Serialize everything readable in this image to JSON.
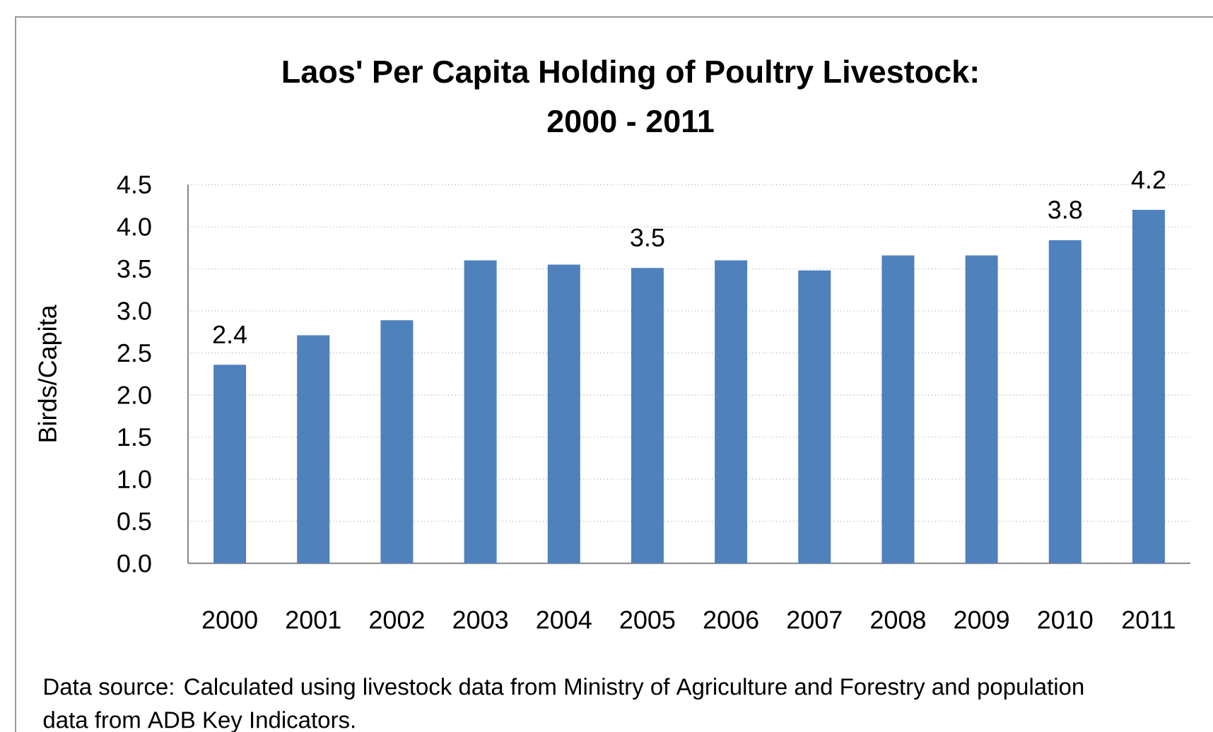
{
  "chart_data": {
    "type": "bar",
    "title": "Laos' Per Capita Holding of Poultry Livestock: 2000 - 2011",
    "ylabel": "Birds/Capita",
    "categories": [
      "2000",
      "2001",
      "2002",
      "2003",
      "2004",
      "2005",
      "2006",
      "2007",
      "2008",
      "2009",
      "2010",
      "2011"
    ],
    "values": [
      2.36,
      2.71,
      2.89,
      3.6,
      3.55,
      3.51,
      3.6,
      3.48,
      3.66,
      3.66,
      3.84,
      4.2
    ],
    "value_labels": [
      "2.4",
      null,
      null,
      null,
      null,
      "3.5",
      null,
      null,
      null,
      null,
      "3.8",
      "4.2"
    ],
    "color": "#4f81bd",
    "ylim": [
      0,
      4.5
    ],
    "yticks": [
      {
        "value": 0,
        "label": "0.0"
      },
      0.5,
      {
        "value": 1,
        "label": "1.0"
      },
      1.5,
      {
        "value": 2,
        "label": "2.0"
      },
      2.5,
      {
        "value": 3,
        "label": "3.0"
      },
      3.5,
      {
        "value": 4,
        "label": "4.0"
      },
      4.5
    ],
    "grid": "y",
    "annotations": [
      "Data source: Calculated using livestock data from Ministry of Agriculture and Forestry and population data from ADB Key Indicators."
    ]
  }
}
